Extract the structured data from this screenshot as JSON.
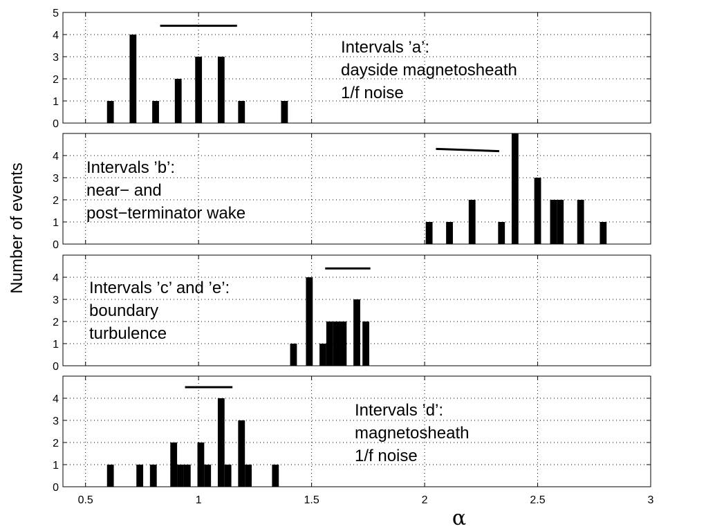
{
  "chart_data": {
    "type": "bar",
    "xlabel": "α",
    "ylabel": "Number of events",
    "xlim": [
      0.4,
      3.0
    ],
    "x_ticks": [
      0.5,
      1,
      1.5,
      2,
      2.5,
      3
    ],
    "x_tick_labels": [
      "0.5",
      "1",
      "1.5",
      "2",
      "2.5",
      "3"
    ],
    "grid": true,
    "bar_width": 0.03,
    "panels": [
      {
        "id": "a",
        "ylim": [
          0,
          5
        ],
        "y_ticks": [
          0,
          1,
          2,
          3,
          4,
          5
        ],
        "annotation": [
          "Intervals ’a’:",
          "dayside magnetosheath",
          "1/f noise"
        ],
        "bars": [
          {
            "x": 0.61,
            "count": 1
          },
          {
            "x": 0.71,
            "count": 4
          },
          {
            "x": 0.81,
            "count": 1
          },
          {
            "x": 0.91,
            "count": 2
          },
          {
            "x": 1.0,
            "count": 3
          },
          {
            "x": 1.1,
            "count": 3
          },
          {
            "x": 1.19,
            "count": 1
          },
          {
            "x": 1.38,
            "count": 1
          }
        ],
        "range_line": {
          "x1": 0.83,
          "x2": 1.17,
          "y1": 4.4,
          "y2": 4.4
        }
      },
      {
        "id": "b",
        "ylim": [
          0,
          5
        ],
        "y_ticks": [
          0,
          1,
          2,
          3,
          4
        ],
        "annotation": [
          "Intervals ’b’:",
          "near− and",
          "post−terminator wake"
        ],
        "bars": [
          {
            "x": 2.02,
            "count": 1
          },
          {
            "x": 2.11,
            "count": 1
          },
          {
            "x": 2.21,
            "count": 2
          },
          {
            "x": 2.34,
            "count": 1
          },
          {
            "x": 2.4,
            "count": 5
          },
          {
            "x": 2.5,
            "count": 3
          },
          {
            "x": 2.57,
            "count": 2
          },
          {
            "x": 2.6,
            "count": 2
          },
          {
            "x": 2.69,
            "count": 2
          },
          {
            "x": 2.79,
            "count": 1
          }
        ],
        "range_line": {
          "x1": 2.05,
          "x2": 2.33,
          "y1": 4.3,
          "y2": 4.2
        }
      },
      {
        "id": "c",
        "ylim": [
          0,
          5
        ],
        "y_ticks": [
          0,
          1,
          2,
          3,
          4
        ],
        "annotation": [
          "Intervals ’c’ and ’e’:",
          "boundary",
          "turbulence"
        ],
        "bars": [
          {
            "x": 1.42,
            "count": 1
          },
          {
            "x": 1.49,
            "count": 4
          },
          {
            "x": 1.55,
            "count": 1
          },
          {
            "x": 1.58,
            "count": 2
          },
          {
            "x": 1.61,
            "count": 2
          },
          {
            "x": 1.64,
            "count": 2
          },
          {
            "x": 1.7,
            "count": 3
          },
          {
            "x": 1.74,
            "count": 2
          }
        ],
        "range_line": {
          "x1": 1.56,
          "x2": 1.76,
          "y1": 4.4,
          "y2": 4.4
        }
      },
      {
        "id": "d",
        "ylim": [
          0,
          5
        ],
        "y_ticks": [
          0,
          1,
          2,
          3,
          4
        ],
        "annotation": [
          "Intervals ’d’:",
          "magnetosheath",
          "1/f noise"
        ],
        "bars": [
          {
            "x": 0.61,
            "count": 1
          },
          {
            "x": 0.74,
            "count": 1
          },
          {
            "x": 0.8,
            "count": 1
          },
          {
            "x": 0.89,
            "count": 2
          },
          {
            "x": 0.92,
            "count": 1
          },
          {
            "x": 0.95,
            "count": 1
          },
          {
            "x": 1.01,
            "count": 2
          },
          {
            "x": 1.04,
            "count": 1
          },
          {
            "x": 1.1,
            "count": 4
          },
          {
            "x": 1.13,
            "count": 1
          },
          {
            "x": 1.19,
            "count": 3
          },
          {
            "x": 1.22,
            "count": 1
          },
          {
            "x": 1.34,
            "count": 1
          }
        ],
        "range_line": {
          "x1": 0.94,
          "x2": 1.15,
          "y1": 4.5,
          "y2": 4.5
        }
      }
    ]
  }
}
